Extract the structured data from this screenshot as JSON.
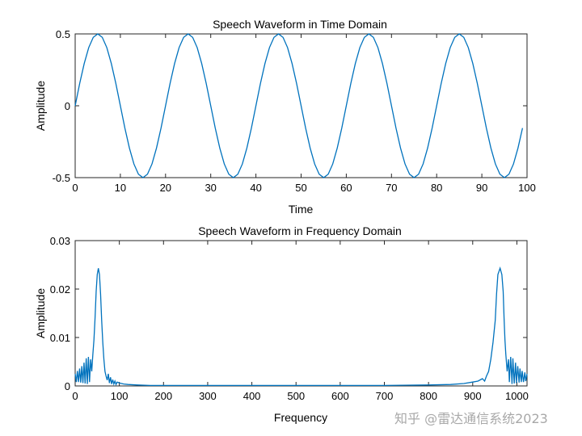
{
  "chart_data": [
    {
      "type": "line",
      "title": "Speech Waveform in Time Domain",
      "xlabel": "Time",
      "ylabel": "Amplitude",
      "xlim": [
        0,
        100
      ],
      "ylim": [
        -0.5,
        0.5
      ],
      "xticks": [
        "0",
        "10",
        "20",
        "30",
        "40",
        "50",
        "60",
        "70",
        "80",
        "90",
        "100"
      ],
      "yticks": [
        "-0.5",
        "0",
        "0.5"
      ],
      "grid": false,
      "series": [
        {
          "color": "#0072BD",
          "x": [
            0,
            1,
            2,
            3,
            4,
            5,
            6,
            7,
            8,
            9,
            10,
            11,
            12,
            13,
            14,
            15,
            16,
            17,
            18,
            19,
            20,
            21,
            22,
            23,
            24,
            25,
            26,
            27,
            28,
            29,
            30,
            31,
            32,
            33,
            34,
            35,
            36,
            37,
            38,
            39,
            40,
            41,
            42,
            43,
            44,
            45,
            46,
            47,
            48,
            49,
            50,
            51,
            52,
            53,
            54,
            55,
            56,
            57,
            58,
            59,
            60,
            61,
            62,
            63,
            64,
            65,
            66,
            67,
            68,
            69,
            70,
            71,
            72,
            73,
            74,
            75,
            76,
            77,
            78,
            79,
            80,
            81,
            82,
            83,
            84,
            85,
            86,
            87,
            88,
            89,
            90,
            91,
            92,
            93,
            94,
            95,
            96,
            97,
            98,
            99
          ],
          "y": [
            0,
            0.155,
            0.294,
            0.405,
            0.476,
            0.5,
            0.476,
            0.405,
            0.294,
            0.155,
            0,
            -0.155,
            -0.294,
            -0.405,
            -0.476,
            -0.5,
            -0.476,
            -0.405,
            -0.294,
            -0.155,
            0,
            0.155,
            0.294,
            0.405,
            0.476,
            0.5,
            0.476,
            0.405,
            0.294,
            0.155,
            0,
            -0.155,
            -0.294,
            -0.405,
            -0.476,
            -0.5,
            -0.476,
            -0.405,
            -0.294,
            -0.155,
            0,
            0.155,
            0.294,
            0.405,
            0.476,
            0.5,
            0.476,
            0.405,
            0.294,
            0.155,
            0,
            -0.155,
            -0.294,
            -0.405,
            -0.476,
            -0.5,
            -0.476,
            -0.405,
            -0.294,
            -0.155,
            0,
            0.155,
            0.294,
            0.405,
            0.476,
            0.5,
            0.476,
            0.405,
            0.294,
            0.155,
            0,
            -0.155,
            -0.294,
            -0.405,
            -0.476,
            -0.5,
            -0.476,
            -0.405,
            -0.294,
            -0.155,
            0,
            0.155,
            0.294,
            0.405,
            0.476,
            0.5,
            0.476,
            0.405,
            0.294,
            0.155,
            0,
            -0.155,
            -0.294,
            -0.405,
            -0.476,
            -0.5,
            -0.476,
            -0.405,
            -0.294,
            -0.155
          ]
        }
      ]
    },
    {
      "type": "line",
      "title": "Speech Waveform in Frequency Domain",
      "xlabel": "Frequency",
      "ylabel": "Amplitude",
      "xlim": [
        0,
        1023
      ],
      "ylim": [
        0,
        0.03
      ],
      "xticks": [
        "0",
        "100",
        "200",
        "300",
        "400",
        "500",
        "600",
        "700",
        "800",
        "900",
        "1000"
      ],
      "yticks": [
        "0",
        "0.01",
        "0.02",
        "0.03"
      ],
      "grid": false,
      "series": [
        {
          "color": "#0072BD",
          "x": [
            0,
            2.5,
            5,
            7.5,
            10,
            12.5,
            15,
            17.5,
            20,
            22.5,
            25,
            27.5,
            30,
            32.5,
            35,
            37.5,
            40,
            42.5,
            45,
            47.5,
            50,
            52.5,
            55,
            57.5,
            60,
            62.5,
            65,
            67.5,
            70,
            72.5,
            75,
            77.5,
            80,
            82.5,
            85,
            87.5,
            90,
            92.5,
            95,
            100,
            110,
            120,
            140,
            170,
            200,
            300,
            400,
            500,
            600,
            700,
            800,
            850,
            880,
            900,
            912,
            922,
            927,
            931,
            936,
            941,
            946,
            951,
            954,
            957,
            962,
            966,
            969,
            971,
            973,
            975,
            978,
            981,
            983,
            986,
            989,
            991,
            994,
            997,
            999,
            1002,
            1005,
            1007,
            1010,
            1012,
            1015,
            1018,
            1020,
            1023
          ],
          "y": [
            0.0025,
            0.0008,
            0.0031,
            0.0008,
            0.0036,
            0.0007,
            0.0041,
            0.0006,
            0.0048,
            0.0005,
            0.0057,
            0.0004,
            0.006,
            0.0008,
            0.0055,
            0.003,
            0.0065,
            0.0095,
            0.014,
            0.0195,
            0.023,
            0.0243,
            0.023,
            0.019,
            0.0135,
            0.009,
            0.0055,
            0.003,
            0.002,
            0.0012,
            0.0025,
            0.0006,
            0.0018,
            0.0004,
            0.0013,
            0.0004,
            0.001,
            0.0003,
            0.0008,
            0.0006,
            0.0004,
            0.0003,
            0.0002,
            0.0001,
            0.0001,
            0.0001,
            0.0001,
            0.0001,
            0.0001,
            0.0001,
            0.0002,
            0.0003,
            0.0005,
            0.0008,
            0.001,
            0.0015,
            0.001,
            0.002,
            0.003,
            0.0055,
            0.009,
            0.0135,
            0.019,
            0.023,
            0.0243,
            0.023,
            0.0195,
            0.014,
            0.0095,
            0.0065,
            0.003,
            0.0055,
            0.0008,
            0.006,
            0.0004,
            0.0057,
            0.0005,
            0.0048,
            0.0006,
            0.0041,
            0.0007,
            0.0036,
            0.0008,
            0.0031,
            0.0008,
            0.0028,
            0.001,
            0.0025
          ]
        }
      ]
    }
  ],
  "watermark": "知乎 @雷达通信系统2023"
}
